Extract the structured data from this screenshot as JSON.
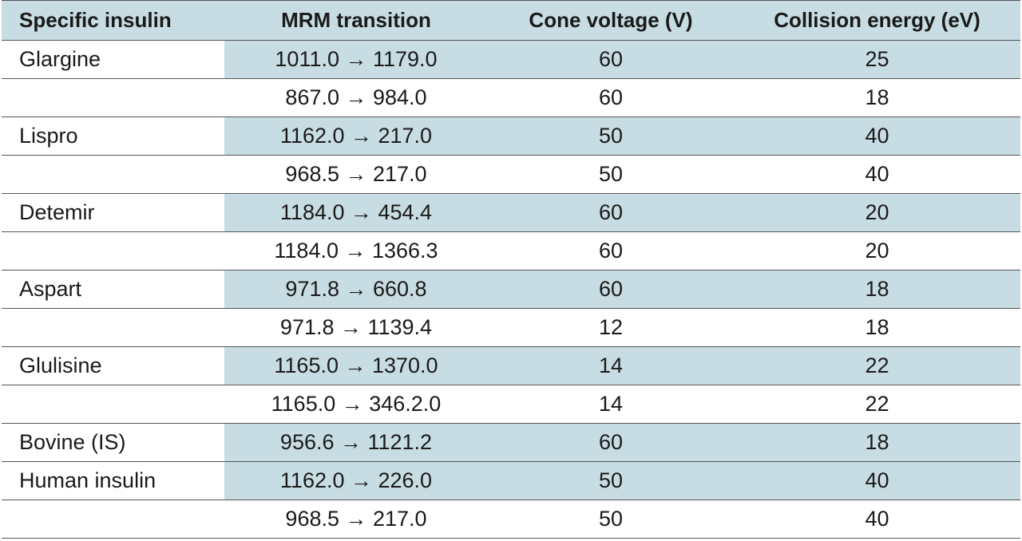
{
  "headers": [
    "Specific insulin",
    "MRM transition",
    "Cone voltage (V)",
    "Collision energy (eV)"
  ],
  "rows": [
    {
      "name": "Glargine",
      "mrm": "1011.0 → 1179.0",
      "cone": "60",
      "collision": "25",
      "shaded": true
    },
    {
      "name": "",
      "mrm": "867.0 → 984.0",
      "cone": "60",
      "collision": "18",
      "shaded": false
    },
    {
      "name": "Lispro",
      "mrm": "1162.0 → 217.0",
      "cone": "50",
      "collision": "40",
      "shaded": true
    },
    {
      "name": "",
      "mrm": "968.5 → 217.0",
      "cone": "50",
      "collision": "40",
      "shaded": false
    },
    {
      "name": "Detemir",
      "mrm": "1184.0 → 454.4",
      "cone": "60",
      "collision": "20",
      "shaded": true
    },
    {
      "name": "",
      "mrm": "1184.0 → 1366.3",
      "cone": "60",
      "collision": "20",
      "shaded": false
    },
    {
      "name": "Aspart",
      "mrm": "971.8 → 660.8",
      "cone": "60",
      "collision": "18",
      "shaded": true
    },
    {
      "name": "",
      "mrm": "971.8 → 1139.4",
      "cone": "12",
      "collision": "18",
      "shaded": false
    },
    {
      "name": "Glulisine",
      "mrm": "1165.0 → 1370.0",
      "cone": "14",
      "collision": "22",
      "shaded": true
    },
    {
      "name": "",
      "mrm": "1165.0 → 346.2.0",
      "cone": "14",
      "collision": "22",
      "shaded": false
    },
    {
      "name": "Bovine (IS)",
      "mrm": "956.6 → 1121.2",
      "cone": "60",
      "collision": "18",
      "shaded": true
    },
    {
      "name": "Human insulin",
      "mrm": "1162.0 → 226.0",
      "cone": "50",
      "collision": "40",
      "shaded": true
    },
    {
      "name": "",
      "mrm": "968.5 → 217.0",
      "cone": "50",
      "collision": "40",
      "shaded": false
    }
  ],
  "colors": {
    "shade": "#c8dde3",
    "rule": "#555555"
  }
}
